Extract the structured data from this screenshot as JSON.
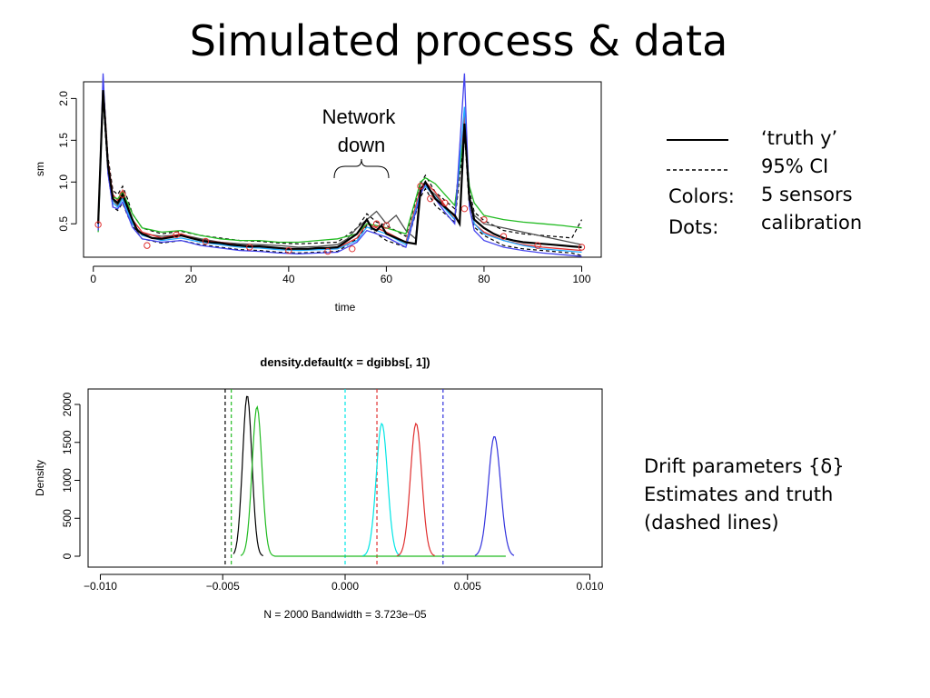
{
  "slide": {
    "title": "Simulated process & data"
  },
  "top_legend": {
    "truth_label": "‘truth y’",
    "ci_label": "95% CI",
    "colors_key": "Colors:",
    "colors_value": "5 sensors",
    "dots_key": "Dots:",
    "dots_value": "calibration"
  },
  "bottom_note": {
    "line1": "Drift parameters {δ}",
    "line2": "Estimates and truth",
    "line3": "(dashed lines)"
  },
  "colors": {
    "truth": "#000000",
    "sensor1": "#4d4d4d",
    "sensor2": "#e03030",
    "sensor3": "#22bb22",
    "sensor4": "#22aaff",
    "sensor5": "#4444ee",
    "calibration": "#e03030",
    "density_black": "#000000",
    "density_green": "#22bb22",
    "density_cyan": "#00e5e5",
    "density_red": "#e03030",
    "density_blue": "#3333dd"
  },
  "chart_data": [
    {
      "type": "line",
      "title": "",
      "xlabel": "time",
      "ylabel": "sm",
      "xlim": [
        0,
        100
      ],
      "ylim": [
        0.1,
        2.2
      ],
      "xticks": [
        0,
        20,
        40,
        60,
        80,
        100
      ],
      "yticks": [
        0.5,
        1.0,
        1.5,
        2.0
      ],
      "ytick_labels": [
        "0.5",
        "1.0",
        "1.5",
        "2.0"
      ],
      "annotation": "Network\ndown",
      "annotation_range": [
        48,
        59
      ],
      "truth": {
        "x": [
          1,
          2,
          3,
          4,
          5,
          6,
          7,
          8,
          9,
          10,
          12,
          14,
          16,
          18,
          20,
          22,
          24,
          26,
          28,
          30,
          32,
          34,
          36,
          38,
          40,
          42,
          44,
          46,
          48,
          50,
          52,
          54,
          56,
          57,
          58,
          59,
          60,
          62,
          64,
          66,
          67,
          68,
          69,
          70,
          72,
          74,
          75,
          76,
          77,
          78,
          80,
          82,
          84,
          86,
          88,
          90,
          92,
          94,
          96,
          98,
          100
        ],
        "y": [
          0.5,
          2.1,
          1.2,
          0.8,
          0.75,
          0.85,
          0.7,
          0.55,
          0.42,
          0.38,
          0.33,
          0.32,
          0.34,
          0.36,
          0.33,
          0.3,
          0.28,
          0.27,
          0.25,
          0.24,
          0.23,
          0.23,
          0.22,
          0.21,
          0.2,
          0.2,
          0.2,
          0.21,
          0.21,
          0.22,
          0.3,
          0.38,
          0.55,
          0.45,
          0.42,
          0.48,
          0.38,
          0.33,
          0.28,
          0.26,
          0.9,
          1.0,
          0.9,
          0.8,
          0.7,
          0.6,
          0.5,
          1.7,
          0.8,
          0.55,
          0.45,
          0.38,
          0.33,
          0.3,
          0.28,
          0.27,
          0.26,
          0.25,
          0.24,
          0.23,
          0.22
        ]
      },
      "ci_upper": {
        "x": [
          1,
          2,
          3,
          4,
          5,
          6,
          7,
          8,
          10,
          14,
          18,
          22,
          26,
          30,
          34,
          38,
          42,
          46,
          50,
          54,
          56,
          58,
          60,
          64,
          67,
          68,
          70,
          72,
          74,
          76,
          77,
          78,
          80,
          84,
          88,
          92,
          96,
          98,
          100
        ],
        "y": [
          0.55,
          2.2,
          1.3,
          0.9,
          0.85,
          0.95,
          0.8,
          0.62,
          0.45,
          0.38,
          0.41,
          0.36,
          0.33,
          0.3,
          0.29,
          0.27,
          0.26,
          0.27,
          0.28,
          0.45,
          0.62,
          0.52,
          0.48,
          0.35,
          0.98,
          1.08,
          0.88,
          0.78,
          0.68,
          1.8,
          0.9,
          0.64,
          0.54,
          0.42,
          0.38,
          0.36,
          0.34,
          0.33,
          0.55
        ]
      },
      "ci_lower": {
        "x": [
          1,
          2,
          3,
          4,
          5,
          6,
          7,
          8,
          10,
          14,
          18,
          22,
          26,
          30,
          34,
          38,
          42,
          46,
          50,
          54,
          56,
          58,
          60,
          64,
          67,
          68,
          70,
          72,
          74,
          76,
          77,
          78,
          80,
          84,
          88,
          92,
          96,
          98,
          100
        ],
        "y": [
          0.45,
          2.0,
          1.1,
          0.7,
          0.66,
          0.75,
          0.6,
          0.48,
          0.32,
          0.27,
          0.3,
          0.25,
          0.22,
          0.19,
          0.18,
          0.16,
          0.15,
          0.16,
          0.17,
          0.32,
          0.48,
          0.38,
          0.3,
          0.22,
          0.82,
          0.92,
          0.72,
          0.62,
          0.52,
          1.6,
          0.7,
          0.46,
          0.36,
          0.24,
          0.2,
          0.18,
          0.16,
          0.15,
          0.12
        ]
      },
      "sensors": [
        {
          "color_key": "sensor1",
          "x": [
            1,
            2,
            3,
            4,
            5,
            6,
            8,
            10,
            14,
            18,
            22,
            26,
            30,
            34,
            38,
            42,
            46,
            50,
            52,
            54,
            56,
            58,
            60,
            62,
            64,
            66,
            67,
            68,
            70,
            72,
            74,
            76,
            77,
            78,
            80,
            84,
            88,
            92,
            96,
            100
          ],
          "y": [
            0.45,
            2.1,
            1.15,
            0.78,
            0.72,
            0.82,
            0.5,
            0.38,
            0.35,
            0.37,
            0.32,
            0.28,
            0.26,
            0.25,
            0.24,
            0.22,
            0.23,
            0.25,
            0.32,
            0.45,
            0.55,
            0.65,
            0.5,
            0.6,
            0.42,
            0.32,
            1.0,
            0.95,
            0.85,
            0.7,
            0.55,
            1.75,
            0.85,
            0.6,
            0.5,
            0.45,
            0.4,
            0.35,
            0.3,
            0.25
          ]
        },
        {
          "color_key": "sensor2",
          "x": [
            1,
            2,
            3,
            4,
            5,
            6,
            8,
            10,
            14,
            18,
            22,
            26,
            30,
            34,
            38,
            42,
            46,
            50,
            54,
            56,
            58,
            60,
            64,
            67,
            68,
            70,
            72,
            74,
            76,
            77,
            78,
            80,
            84,
            88,
            92,
            96,
            100
          ],
          "y": [
            0.5,
            2.2,
            1.25,
            0.85,
            0.78,
            0.9,
            0.55,
            0.4,
            0.33,
            0.38,
            0.3,
            0.28,
            0.24,
            0.23,
            0.21,
            0.2,
            0.2,
            0.21,
            0.33,
            0.5,
            0.45,
            0.4,
            0.28,
            0.92,
            1.0,
            0.88,
            0.72,
            0.58,
            1.8,
            0.8,
            0.5,
            0.4,
            0.3,
            0.25,
            0.22,
            0.2,
            0.18
          ]
        },
        {
          "color_key": "sensor3",
          "x": [
            1,
            2,
            3,
            4,
            5,
            6,
            8,
            10,
            14,
            18,
            22,
            26,
            30,
            34,
            38,
            42,
            46,
            50,
            54,
            56,
            58,
            60,
            64,
            67,
            68,
            70,
            72,
            74,
            76,
            77,
            78,
            80,
            84,
            88,
            92,
            96,
            100
          ],
          "y": [
            0.4,
            2.05,
            1.2,
            0.82,
            0.8,
            0.88,
            0.62,
            0.45,
            0.4,
            0.42,
            0.36,
            0.32,
            0.3,
            0.3,
            0.28,
            0.28,
            0.3,
            0.32,
            0.38,
            0.5,
            0.48,
            0.45,
            0.38,
            1.0,
            1.05,
            0.98,
            0.85,
            0.72,
            1.6,
            0.95,
            0.75,
            0.6,
            0.55,
            0.52,
            0.5,
            0.48,
            0.45
          ]
        },
        {
          "color_key": "sensor4",
          "x": [
            1,
            2,
            3,
            4,
            5,
            6,
            8,
            10,
            14,
            18,
            22,
            26,
            30,
            34,
            38,
            42,
            46,
            50,
            54,
            56,
            58,
            60,
            64,
            67,
            68,
            70,
            72,
            74,
            76,
            77,
            78,
            80,
            84,
            88,
            92,
            96,
            100
          ],
          "y": [
            0.48,
            2.15,
            1.18,
            0.75,
            0.7,
            0.8,
            0.5,
            0.36,
            0.3,
            0.33,
            0.28,
            0.25,
            0.22,
            0.21,
            0.19,
            0.18,
            0.19,
            0.2,
            0.3,
            0.46,
            0.42,
            0.38,
            0.25,
            0.88,
            0.95,
            0.82,
            0.68,
            0.55,
            1.9,
            0.82,
            0.5,
            0.38,
            0.3,
            0.24,
            0.2,
            0.18,
            0.16
          ]
        },
        {
          "color_key": "sensor5",
          "x": [
            1,
            2,
            3,
            4,
            5,
            6,
            8,
            10,
            14,
            18,
            22,
            26,
            30,
            34,
            38,
            42,
            46,
            50,
            54,
            56,
            58,
            60,
            64,
            67,
            68,
            70,
            72,
            74,
            76,
            77,
            78,
            80,
            84,
            88,
            92,
            96,
            100
          ],
          "y": [
            0.42,
            2.3,
            1.1,
            0.7,
            0.68,
            0.76,
            0.46,
            0.32,
            0.28,
            0.3,
            0.24,
            0.21,
            0.18,
            0.17,
            0.15,
            0.14,
            0.15,
            0.16,
            0.28,
            0.42,
            0.38,
            0.34,
            0.22,
            0.85,
            0.98,
            0.8,
            0.64,
            0.5,
            2.3,
            0.7,
            0.42,
            0.3,
            0.22,
            0.18,
            0.15,
            0.13,
            0.11
          ]
        }
      ],
      "calibration_points": {
        "x": [
          1,
          6,
          11,
          17,
          23,
          32,
          40,
          48,
          53,
          58,
          60,
          67,
          69,
          72,
          76,
          80,
          84,
          91,
          100
        ],
        "y": [
          0.49,
          0.85,
          0.24,
          0.37,
          0.29,
          0.22,
          0.18,
          0.17,
          0.2,
          0.5,
          0.48,
          0.95,
          0.8,
          0.75,
          0.68,
          0.55,
          0.35,
          0.24,
          0.22
        ]
      }
    },
    {
      "type": "line",
      "title": "density.default(x = dgibbs[, 1])",
      "xlabel": "N = 2000   Bandwidth = 3.723e−05",
      "ylabel": "Density",
      "xlim": [
        -0.0105,
        0.0105
      ],
      "ylim": [
        0,
        2200
      ],
      "xticks": [
        -0.01,
        -0.005,
        0,
        0.005,
        0.01
      ],
      "xtick_labels": [
        "−0.010",
        "−0.005",
        "0.000",
        "0.005",
        "0.010"
      ],
      "yticks": [
        0,
        500,
        1000,
        1500,
        2000
      ],
      "ytick_labels": [
        "0",
        "500",
        "1000",
        "1500",
        "2000"
      ],
      "series": [
        {
          "color_key": "density_black",
          "mean": -0.004,
          "sd": 0.00019,
          "peak": 2120,
          "x_range": [
            -0.0046,
            -0.0033
          ]
        },
        {
          "color_key": "density_green",
          "mean": -0.0036,
          "sd": 0.0002,
          "peak": 1970,
          "x_range": [
            -0.0043,
            -0.0029
          ]
        },
        {
          "color_key": "density_cyan",
          "mean": 0.0015,
          "sd": 0.00023,
          "peak": 1750,
          "x_range": [
            0.0007,
            0.0023
          ]
        },
        {
          "color_key": "density_red",
          "mean": 0.0029,
          "sd": 0.00023,
          "peak": 1750,
          "x_range": [
            0.0021,
            0.0037
          ]
        },
        {
          "color_key": "density_blue",
          "mean": 0.0061,
          "sd": 0.00025,
          "peak": 1580,
          "x_range": [
            0.0053,
            0.0069
          ]
        }
      ],
      "truth_lines": [
        {
          "color_key": "density_black",
          "x": -0.0049
        },
        {
          "color_key": "density_green",
          "x": -0.00465
        },
        {
          "color_key": "density_cyan",
          "x": 0.0
        },
        {
          "color_key": "density_red",
          "x": 0.0013
        },
        {
          "color_key": "density_blue",
          "x": 0.004
        }
      ]
    }
  ]
}
